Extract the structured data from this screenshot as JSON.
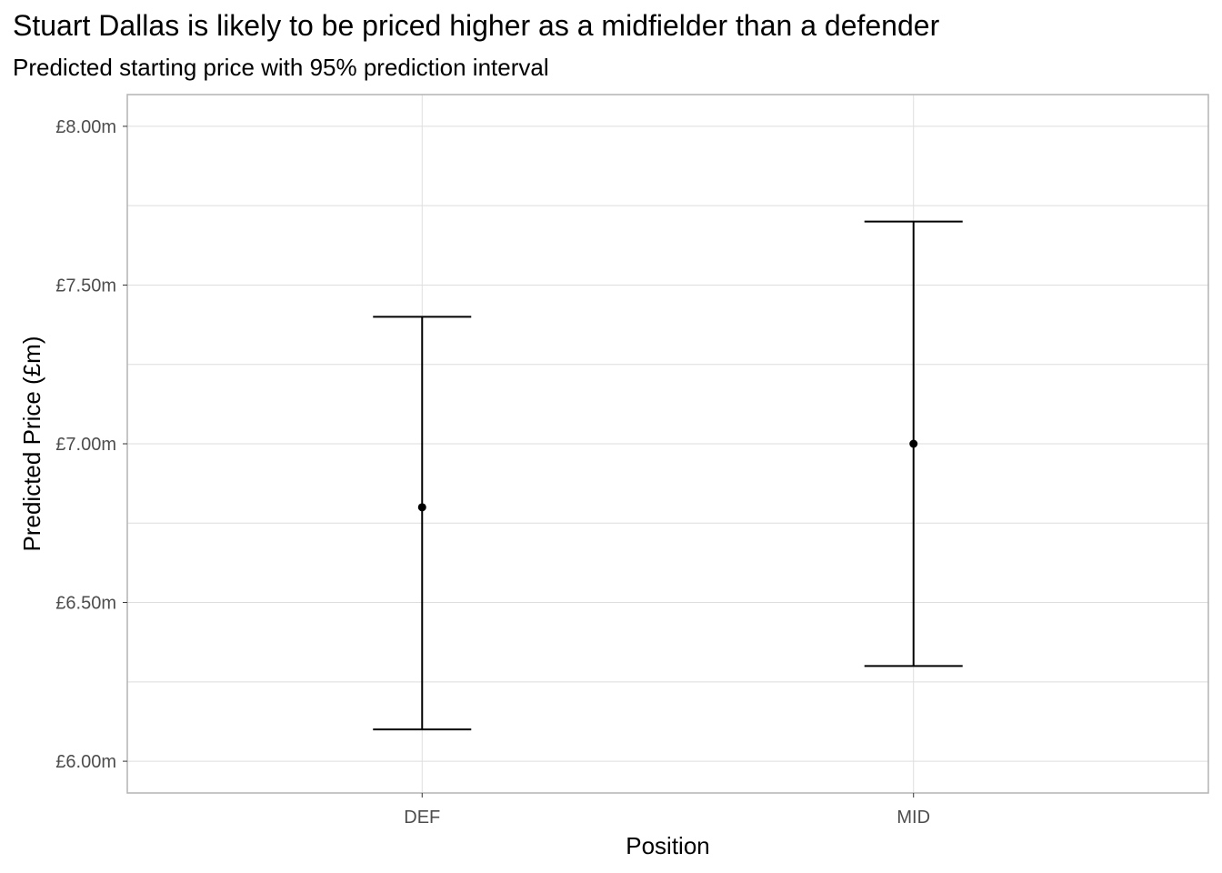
{
  "chart_data": {
    "type": "errorbar",
    "title": "Stuart Dallas is likely to be priced higher as a midfielder than a defender",
    "subtitle": "Predicted starting price with 95% prediction interval",
    "xlabel": "Position",
    "ylabel": "Predicted Price (£m)",
    "categories": [
      "DEF",
      "MID"
    ],
    "points": [
      {
        "category": "DEF",
        "estimate": 6.8,
        "lower": 6.1,
        "upper": 7.4
      },
      {
        "category": "MID",
        "estimate": 7.0,
        "lower": 6.3,
        "upper": 7.7
      }
    ],
    "ylim": [
      5.9,
      8.1
    ],
    "y_ticks": [
      6.0,
      6.5,
      7.0,
      7.5,
      8.0
    ],
    "y_tick_labels": [
      "£6.00m",
      "£6.50m",
      "£7.00m",
      "£7.50m",
      "£8.00m"
    ],
    "y_minor_ticks": [
      6.25,
      6.75,
      7.25,
      7.75
    ],
    "grid": true,
    "legend": "none",
    "colors": {
      "marks": "#000000",
      "grid": "#dedede",
      "panel_border": "#b3b3b3",
      "tick_text": "#4d4d4d"
    }
  }
}
